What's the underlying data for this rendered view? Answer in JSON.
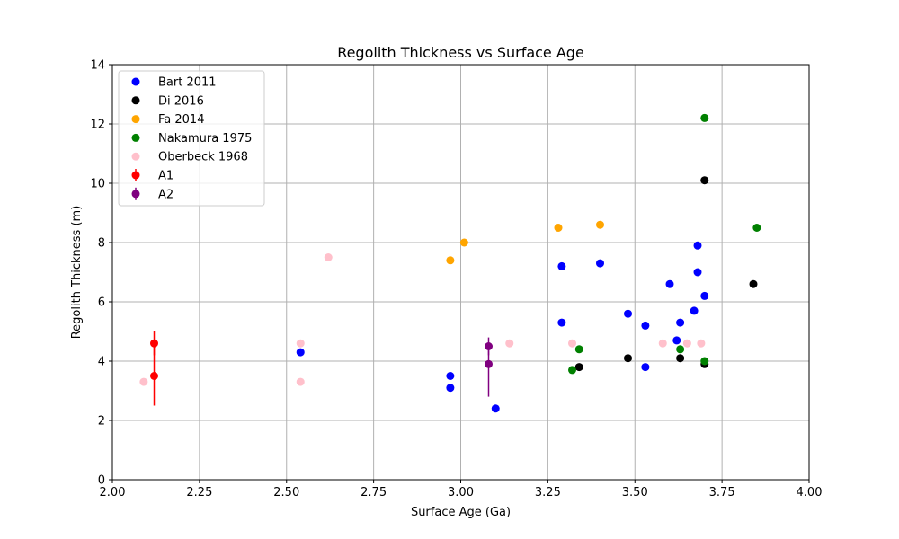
{
  "chart_data": {
    "type": "scatter",
    "title": "Regolith Thickness vs Surface Age",
    "xlabel": "Surface Age (Ga)",
    "ylabel": "Regolith Thickness (m)",
    "xlim": [
      2.0,
      4.0
    ],
    "ylim": [
      0,
      14
    ],
    "xticks": [
      "2.00",
      "2.25",
      "2.50",
      "2.75",
      "3.00",
      "3.25",
      "3.50",
      "3.75",
      "4.00"
    ],
    "yticks": [
      "0",
      "2",
      "4",
      "6",
      "8",
      "10",
      "12",
      "14"
    ],
    "grid": true,
    "legend_position": "top-left",
    "series": [
      {
        "name": "Bart 2011",
        "color": "#0000ff",
        "kind": "scatter",
        "points": [
          [
            2.54,
            4.3
          ],
          [
            2.97,
            3.5
          ],
          [
            2.97,
            3.1
          ],
          [
            3.1,
            2.4
          ],
          [
            3.29,
            7.2
          ],
          [
            3.29,
            5.3
          ],
          [
            3.4,
            7.3
          ],
          [
            3.48,
            5.6
          ],
          [
            3.53,
            5.2
          ],
          [
            3.53,
            3.8
          ],
          [
            3.6,
            6.6
          ],
          [
            3.62,
            4.7
          ],
          [
            3.63,
            5.3
          ],
          [
            3.67,
            5.7
          ],
          [
            3.68,
            7.9
          ],
          [
            3.68,
            7.0
          ],
          [
            3.7,
            6.2
          ]
        ]
      },
      {
        "name": "Di 2016",
        "color": "#000000",
        "kind": "scatter",
        "points": [
          [
            3.34,
            3.8
          ],
          [
            3.48,
            4.1
          ],
          [
            3.63,
            4.1
          ],
          [
            3.7,
            10.1
          ],
          [
            3.7,
            3.9
          ],
          [
            3.84,
            6.6
          ]
        ]
      },
      {
        "name": "Fa 2014",
        "color": "#ffa500",
        "kind": "scatter",
        "points": [
          [
            2.97,
            7.4
          ],
          [
            3.01,
            8.0
          ],
          [
            3.28,
            8.5
          ],
          [
            3.4,
            8.6
          ]
        ]
      },
      {
        "name": "Nakamura 1975",
        "color": "#008000",
        "kind": "scatter",
        "points": [
          [
            3.32,
            3.7
          ],
          [
            3.34,
            4.4
          ],
          [
            3.63,
            4.4
          ],
          [
            3.7,
            12.2
          ],
          [
            3.7,
            4.0
          ],
          [
            3.85,
            8.5
          ]
        ]
      },
      {
        "name": "Oberbeck 1968",
        "color": "#ffc0cb",
        "kind": "scatter",
        "points": [
          [
            2.09,
            3.3
          ],
          [
            2.54,
            4.6
          ],
          [
            2.54,
            3.3
          ],
          [
            2.62,
            7.5
          ],
          [
            3.14,
            4.6
          ],
          [
            3.32,
            4.6
          ],
          [
            3.58,
            4.6
          ],
          [
            3.65,
            4.6
          ],
          [
            3.69,
            4.6
          ]
        ]
      },
      {
        "name": "A1",
        "color": "#ff0000",
        "kind": "errorbar",
        "points": [
          [
            2.12,
            4.6,
            4.2,
            5.0
          ],
          [
            2.12,
            3.5,
            2.5,
            4.5
          ]
        ]
      },
      {
        "name": "A2",
        "color": "#800080",
        "kind": "errorbar",
        "points": [
          [
            3.08,
            4.5,
            4.2,
            4.8
          ],
          [
            3.08,
            3.9,
            2.8,
            4.5
          ]
        ]
      }
    ]
  }
}
